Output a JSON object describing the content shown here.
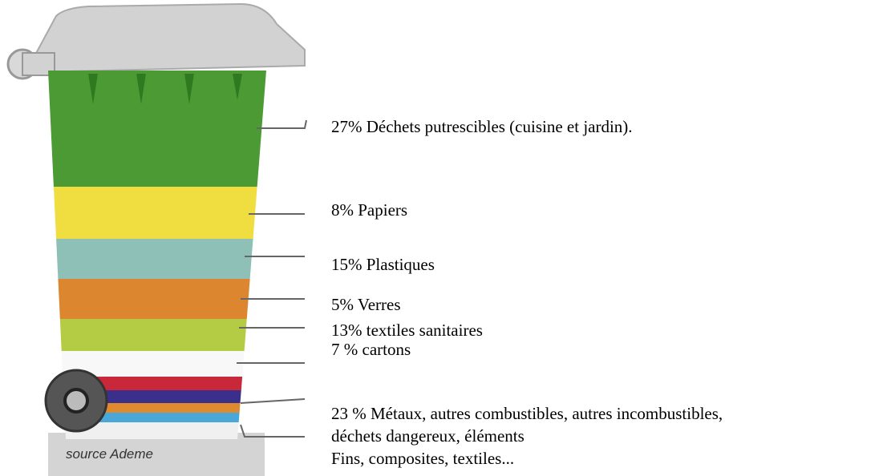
{
  "source": "source Ademe",
  "labels": [
    {
      "lines": [
        "27% Déchets putrescibles (cuisine et jardin)."
      ]
    },
    {
      "lines": [
        "8% Papiers"
      ]
    },
    {
      "lines": [
        "15% Plastiques"
      ]
    },
    {
      "lines": [
        "5% Verres"
      ]
    },
    {
      "lines": [
        "13% textiles sanitaires"
      ]
    },
    {
      "lines": [
        "7 % cartons"
      ]
    },
    {
      "lines": [
        "23 % Métaux, autres combustibles, autres incombustibles,",
        "déchets dangereux, éléments",
        "Fins, composites, textiles..."
      ]
    }
  ]
}
